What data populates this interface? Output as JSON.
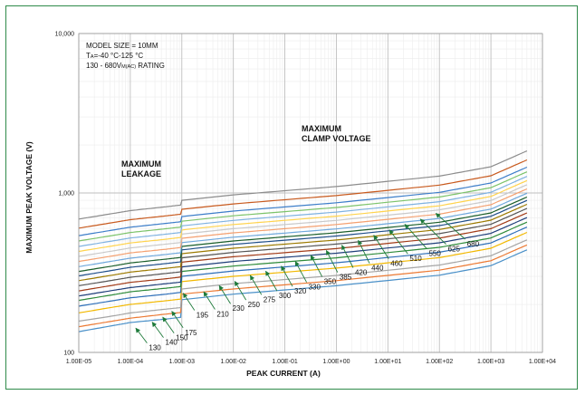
{
  "chart_data": {
    "type": "line",
    "title": "",
    "xlabel": "PEAK CURRENT (A)",
    "ylabel": "MAXIMUM PEAK VOLTAGE (V)",
    "x_scale": "log",
    "y_scale": "log",
    "xlim": [
      1e-05,
      10000
    ],
    "ylim": [
      100,
      10000
    ],
    "x_tick_labels": [
      "1.00E-05",
      "1.00E-04",
      "1.00E-03",
      "1.00E-02",
      "1.00E-01",
      "1.00E+00",
      "1.00E+01",
      "1.00E+02",
      "1.00E+03",
      "1.00E+04"
    ],
    "y_tick_labels": [
      "100",
      "1,000",
      "10,000"
    ],
    "grid": true,
    "annotations": {
      "model_size": "MODEL SIZE = 10MM",
      "temperature_prefix": "T",
      "temperature_sub": "A",
      "temperature_rest": "=-40 °C-125 °C",
      "rating_main": "130  - 680V",
      "rating_sub": "M(AC)",
      "rating_tail": " RATING",
      "leakage_line1": "MAXIMUM",
      "leakage_line2": "LEAKAGE",
      "clamp_line1": "MAXIMUM",
      "clamp_line2": "CLAMP VOLTAGE"
    },
    "series": [
      {
        "name": "130",
        "color": "#4a90c8",
        "values": [
          [
            1e-05,
            135
          ],
          [
            5e-05,
            148
          ],
          [
            0.0001,
            154
          ],
          [
            0.0005,
            162
          ],
          [
            0.00095,
            166
          ],
          [
            0.001,
            214
          ],
          [
            0.01,
            232
          ],
          [
            1,
            262
          ],
          [
            100,
            305
          ],
          [
            1000,
            350
          ],
          [
            5000,
            440
          ]
        ]
      },
      {
        "name": "140",
        "color": "#ec7a34",
        "values": [
          [
            1e-05,
            145
          ],
          [
            5e-05,
            158
          ],
          [
            0.0001,
            164
          ],
          [
            0.0005,
            174
          ],
          [
            0.00095,
            178
          ],
          [
            0.001,
            232
          ],
          [
            0.01,
            250
          ],
          [
            1,
            282
          ],
          [
            100,
            328
          ],
          [
            1000,
            376
          ],
          [
            5000,
            472
          ]
        ]
      },
      {
        "name": "150",
        "color": "#a5a5a5",
        "values": [
          [
            1e-05,
            157
          ],
          [
            5e-05,
            170
          ],
          [
            0.0001,
            177
          ],
          [
            0.0005,
            187
          ],
          [
            0.00095,
            191
          ],
          [
            0.001,
            250
          ],
          [
            0.01,
            270
          ],
          [
            1,
            304
          ],
          [
            100,
            353
          ],
          [
            1000,
            404
          ],
          [
            5000,
            508
          ]
        ]
      },
      {
        "name": "175",
        "color": "#f2b800",
        "values": [
          [
            1e-05,
            177
          ],
          [
            5e-05,
            193
          ],
          [
            0.0001,
            200
          ],
          [
            0.0005,
            211
          ],
          [
            0.00095,
            216
          ],
          [
            0.001,
            278
          ],
          [
            0.01,
            300
          ],
          [
            1,
            338
          ],
          [
            100,
            393
          ],
          [
            1000,
            450
          ],
          [
            5000,
            566
          ]
        ]
      },
      {
        "name": "195",
        "color": "#2e6fb8",
        "values": [
          [
            1e-05,
            195
          ],
          [
            5e-05,
            212
          ],
          [
            0.0001,
            220
          ],
          [
            0.0005,
            232
          ],
          [
            0.00095,
            238
          ],
          [
            0.001,
            300
          ],
          [
            0.01,
            324
          ],
          [
            1,
            365
          ],
          [
            100,
            425
          ],
          [
            1000,
            486
          ],
          [
            5000,
            611
          ]
        ]
      },
      {
        "name": "210",
        "color": "#2e8b3a",
        "values": [
          [
            1e-05,
            212
          ],
          [
            5e-05,
            231
          ],
          [
            0.0001,
            240
          ],
          [
            0.0005,
            253
          ],
          [
            0.00095,
            259
          ],
          [
            0.001,
            322
          ],
          [
            0.01,
            348
          ],
          [
            1,
            392
          ],
          [
            100,
            456
          ],
          [
            1000,
            522
          ],
          [
            5000,
            656
          ]
        ]
      },
      {
        "name": "230",
        "color": "#1f3f7a",
        "values": [
          [
            1e-05,
            226
          ],
          [
            5e-05,
            246
          ],
          [
            0.0001,
            255
          ],
          [
            0.0005,
            270
          ],
          [
            0.00095,
            276
          ],
          [
            0.001,
            344
          ],
          [
            0.01,
            372
          ],
          [
            1,
            419
          ],
          [
            100,
            487
          ],
          [
            1000,
            558
          ],
          [
            5000,
            701
          ]
        ]
      },
      {
        "name": "250",
        "color": "#a23b18",
        "values": [
          [
            1e-05,
            243
          ],
          [
            5e-05,
            265
          ],
          [
            0.0001,
            275
          ],
          [
            0.0005,
            290
          ],
          [
            0.00095,
            297
          ],
          [
            0.001,
            368
          ],
          [
            0.01,
            398
          ],
          [
            1,
            448
          ],
          [
            100,
            521
          ],
          [
            1000,
            597
          ],
          [
            5000,
            750
          ]
        ]
      },
      {
        "name": "275",
        "color": "#555555",
        "values": [
          [
            1e-05,
            262
          ],
          [
            5e-05,
            285
          ],
          [
            0.0001,
            296
          ],
          [
            0.0005,
            313
          ],
          [
            0.00095,
            320
          ],
          [
            0.001,
            392
          ],
          [
            0.01,
            424
          ],
          [
            1,
            478
          ],
          [
            100,
            556
          ],
          [
            1000,
            636
          ],
          [
            5000,
            800
          ]
        ]
      },
      {
        "name": "300",
        "color": "#9c7a00",
        "values": [
          [
            1e-05,
            282
          ],
          [
            5e-05,
            307
          ],
          [
            0.0001,
            319
          ],
          [
            0.0005,
            337
          ],
          [
            0.00095,
            345
          ],
          [
            0.001,
            416
          ],
          [
            0.01,
            450
          ],
          [
            1,
            507
          ],
          [
            100,
            590
          ],
          [
            1000,
            675
          ],
          [
            5000,
            849
          ]
        ]
      },
      {
        "name": "320",
        "color": "#1f4e89",
        "values": [
          [
            1e-05,
            302
          ],
          [
            5e-05,
            329
          ],
          [
            0.0001,
            342
          ],
          [
            0.0005,
            361
          ],
          [
            0.00095,
            370
          ],
          [
            0.001,
            440
          ],
          [
            0.01,
            476
          ],
          [
            1,
            537
          ],
          [
            100,
            624
          ],
          [
            1000,
            714
          ],
          [
            5000,
            898
          ]
        ]
      },
      {
        "name": "330",
        "color": "#1a5e2a",
        "values": [
          [
            1e-05,
            322
          ],
          [
            5e-05,
            350
          ],
          [
            0.0001,
            364
          ],
          [
            0.0005,
            385
          ],
          [
            0.00095,
            394
          ],
          [
            0.001,
            462
          ],
          [
            0.01,
            500
          ],
          [
            1,
            563
          ],
          [
            100,
            655
          ],
          [
            1000,
            750
          ],
          [
            5000,
            943
          ]
        ]
      },
      {
        "name": "350",
        "color": "#6fa8dc",
        "values": [
          [
            1e-05,
            345
          ],
          [
            5e-05,
            376
          ],
          [
            0.0001,
            390
          ],
          [
            0.0005,
            412
          ],
          [
            0.00095,
            422
          ],
          [
            0.001,
            488
          ],
          [
            0.01,
            528
          ],
          [
            1,
            595
          ],
          [
            100,
            692
          ],
          [
            1000,
            792
          ],
          [
            5000,
            996
          ]
        ]
      },
      {
        "name": "385",
        "color": "#f4a070",
        "values": [
          [
            1e-05,
            372
          ],
          [
            5e-05,
            405
          ],
          [
            0.0001,
            421
          ],
          [
            0.0005,
            444
          ],
          [
            0.00095,
            455
          ],
          [
            0.001,
            520
          ],
          [
            0.01,
            562
          ],
          [
            1,
            634
          ],
          [
            100,
            737
          ],
          [
            1000,
            844
          ],
          [
            5000,
            1061
          ]
        ]
      },
      {
        "name": "420",
        "color": "#c9c9c9",
        "values": [
          [
            1e-05,
            400
          ],
          [
            5e-05,
            435
          ],
          [
            0.0001,
            452
          ],
          [
            0.0005,
            478
          ],
          [
            0.00095,
            489
          ],
          [
            0.001,
            552
          ],
          [
            0.01,
            597
          ],
          [
            1,
            673
          ],
          [
            100,
            783
          ],
          [
            1000,
            896
          ],
          [
            5000,
            1127
          ]
        ]
      },
      {
        "name": "440",
        "color": "#ffd34d",
        "values": [
          [
            1e-05,
            430
          ],
          [
            5e-05,
            468
          ],
          [
            0.0001,
            486
          ],
          [
            0.0005,
            513
          ],
          [
            0.00095,
            526
          ],
          [
            0.001,
            586
          ],
          [
            0.01,
            634
          ],
          [
            1,
            715
          ],
          [
            100,
            831
          ],
          [
            1000,
            951
          ],
          [
            5000,
            1196
          ]
        ]
      },
      {
        "name": "460",
        "color": "#7fb2e0",
        "values": [
          [
            1e-05,
            462
          ],
          [
            5e-05,
            503
          ],
          [
            0.0001,
            522
          ],
          [
            0.0005,
            552
          ],
          [
            0.00095,
            565
          ],
          [
            0.001,
            622
          ],
          [
            0.01,
            673
          ],
          [
            1,
            759
          ],
          [
            100,
            882
          ],
          [
            1000,
            1010
          ],
          [
            5000,
            1270
          ]
        ]
      },
      {
        "name": "510",
        "color": "#7cc36a",
        "values": [
          [
            1e-05,
            500
          ],
          [
            5e-05,
            544
          ],
          [
            0.0001,
            565
          ],
          [
            0.0005,
            597
          ],
          [
            0.00095,
            611
          ],
          [
            0.001,
            665
          ],
          [
            0.01,
            719
          ],
          [
            1,
            811
          ],
          [
            100,
            943
          ],
          [
            1000,
            1079
          ],
          [
            5000,
            1357
          ]
        ]
      },
      {
        "name": "550",
        "color": "#3d7ec9",
        "values": [
          [
            1e-05,
            540
          ],
          [
            5e-05,
            588
          ],
          [
            0.0001,
            610
          ],
          [
            0.0005,
            645
          ],
          [
            0.00095,
            660
          ],
          [
            0.001,
            712
          ],
          [
            0.01,
            770
          ],
          [
            1,
            868
          ],
          [
            100,
            1009
          ],
          [
            1000,
            1155
          ],
          [
            5000,
            1452
          ]
        ]
      },
      {
        "name": "625",
        "color": "#c85a1e",
        "values": [
          [
            1e-05,
            602
          ],
          [
            5e-05,
            655
          ],
          [
            0.0001,
            680
          ],
          [
            0.0005,
            719
          ],
          [
            0.00095,
            736
          ],
          [
            0.001,
            790
          ],
          [
            0.01,
            854
          ],
          [
            1,
            963
          ],
          [
            100,
            1120
          ],
          [
            1000,
            1282
          ],
          [
            5000,
            1612
          ]
        ]
      },
      {
        "name": "680",
        "color": "#8c8c8c",
        "values": [
          [
            1e-05,
            686
          ],
          [
            5e-05,
            747
          ],
          [
            0.0001,
            775
          ],
          [
            0.0005,
            820
          ],
          [
            0.00095,
            840
          ],
          [
            0.001,
            900
          ],
          [
            0.01,
            973
          ],
          [
            1,
            1097
          ],
          [
            100,
            1276
          ],
          [
            1000,
            1460
          ],
          [
            5000,
            1836
          ]
        ]
      }
    ],
    "series_labels": [
      {
        "text": "130",
        "tip": [
          0.00012,
          145
        ]
      },
      {
        "text": "140",
        "tip": [
          0.00025,
          158
        ]
      },
      {
        "text": "150",
        "tip": [
          0.0004,
          170
        ]
      },
      {
        "text": "175",
        "tip": [
          0.0006,
          185
        ]
      },
      {
        "text": "195",
        "tip": [
          0.001,
          240
        ]
      },
      {
        "text": "210",
        "tip": [
          0.0025,
          245
        ]
      },
      {
        "text": "230",
        "tip": [
          0.005,
          268
        ]
      },
      {
        "text": "250",
        "tip": [
          0.01,
          285
        ]
      },
      {
        "text": "275",
        "tip": [
          0.02,
          310
        ]
      },
      {
        "text": "300",
        "tip": [
          0.04,
          330
        ]
      },
      {
        "text": "320",
        "tip": [
          0.08,
          355
        ]
      },
      {
        "text": "330",
        "tip": [
          0.15,
          380
        ]
      },
      {
        "text": "350",
        "tip": [
          0.3,
          415
        ]
      },
      {
        "text": "385",
        "tip": [
          0.6,
          445
        ]
      },
      {
        "text": "420",
        "tip": [
          1.2,
          480
        ]
      },
      {
        "text": "440",
        "tip": [
          2.5,
          515
        ]
      },
      {
        "text": "460",
        "tip": [
          5,
          555
        ]
      },
      {
        "text": "510",
        "tip": [
          10,
          600
        ]
      },
      {
        "text": "550",
        "tip": [
          20,
          650
        ]
      },
      {
        "text": "625",
        "tip": [
          40,
          700
        ]
      },
      {
        "text": "680",
        "tip": [
          80,
          760
        ]
      }
    ]
  }
}
